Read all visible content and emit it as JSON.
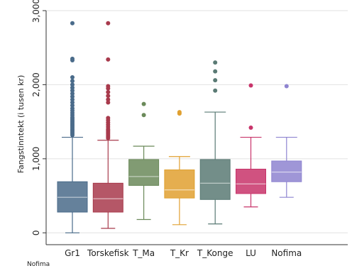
{
  "chart_data": {
    "type": "box",
    "ylabel": "Fangstinntekt (i tusen kr)",
    "note": "Nofima",
    "ylim": [
      -160,
      3000
    ],
    "yticks": [
      0,
      1000,
      2000,
      3000
    ],
    "ytick_labels": [
      "0",
      "1,000",
      "2,000",
      "3,000"
    ],
    "grid": true,
    "legend": "none",
    "categories": [
      "Gr1",
      "Torskefisk",
      "T_Ma",
      "T_Kr",
      "T_Konge",
      "LU",
      "Nofima"
    ],
    "boxes": [
      {
        "label": "Gr1",
        "color": "#4a6b8a",
        "whisker_low": 0,
        "q1": 280,
        "median": 480,
        "q3": 690,
        "whisker_high": 1290,
        "outliers": [
          2830,
          2350,
          2330,
          2100,
          2050,
          2000,
          1960,
          1920,
          1880,
          1840,
          1800,
          1760,
          1720,
          1680,
          1650,
          1620,
          1590,
          1560,
          1540,
          1520,
          1500,
          1480,
          1460,
          1440,
          1420,
          1400,
          1380,
          1360,
          1340,
          1320
        ]
      },
      {
        "label": "Torskefisk",
        "color": "#a83a4c",
        "whisker_low": 60,
        "q1": 280,
        "median": 460,
        "q3": 670,
        "whisker_high": 1250,
        "outliers": [
          2830,
          2340,
          1980,
          1950,
          1900,
          1850,
          1800,
          1760,
          1550,
          1520,
          1490,
          1460,
          1430,
          1400,
          1380,
          1360,
          1340,
          1320,
          1300,
          1280
        ]
      },
      {
        "label": "T_Ma",
        "color": "#6b8a5a",
        "whisker_low": 180,
        "q1": 640,
        "median": 760,
        "q3": 990,
        "whisker_high": 1170,
        "outliers": [
          1740,
          1590
        ]
      },
      {
        "label": "T_Kr",
        "color": "#e0a030",
        "whisker_low": 110,
        "q1": 470,
        "median": 580,
        "q3": 850,
        "whisker_high": 1030,
        "outliers": [
          1630,
          1610
        ]
      },
      {
        "label": "T_Konge",
        "color": "#5a7a74",
        "whisker_low": 120,
        "q1": 450,
        "median": 670,
        "q3": 990,
        "whisker_high": 1630,
        "outliers": [
          2300,
          2180,
          2060,
          1920
        ]
      },
      {
        "label": "LU",
        "color": "#c8346a",
        "whisker_low": 350,
        "q1": 530,
        "median": 660,
        "q3": 860,
        "whisker_high": 1290,
        "outliers": [
          1990,
          1420
        ]
      },
      {
        "label": "Nofima",
        "color": "#8e84d0",
        "whisker_low": 480,
        "q1": 690,
        "median": 820,
        "q3": 970,
        "whisker_high": 1290,
        "outliers": [
          1980
        ]
      }
    ]
  }
}
